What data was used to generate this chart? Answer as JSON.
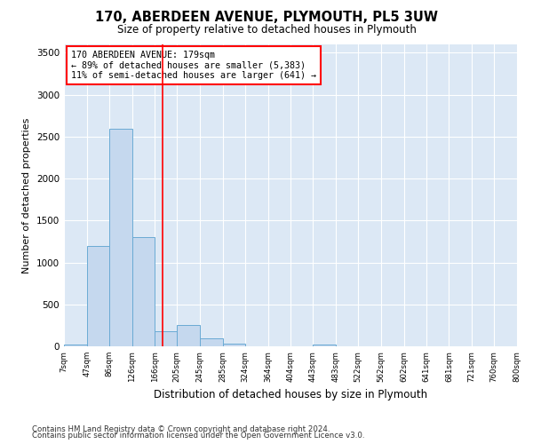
{
  "title": "170, ABERDEEN AVENUE, PLYMOUTH, PL5 3UW",
  "subtitle": "Size of property relative to detached houses in Plymouth",
  "xlabel": "Distribution of detached houses by size in Plymouth",
  "ylabel": "Number of detached properties",
  "bar_color": "#c5d8ee",
  "bar_edge_color": "#6aaad4",
  "background_color": "#dce8f5",
  "grid_color": "#ffffff",
  "property_size": 179,
  "annotation_lines": [
    "170 ABERDEEN AVENUE: 179sqm",
    "← 89% of detached houses are smaller (5,383)",
    "11% of semi-detached houses are larger (641) →"
  ],
  "bin_edges": [
    7,
    47,
    86,
    126,
    166,
    205,
    245,
    285,
    324,
    364,
    404,
    443,
    483,
    522,
    562,
    602,
    641,
    681,
    721,
    760,
    800
  ],
  "bin_labels": [
    "7sqm",
    "47sqm",
    "86sqm",
    "126sqm",
    "166sqm",
    "205sqm",
    "245sqm",
    "285sqm",
    "324sqm",
    "364sqm",
    "404sqm",
    "443sqm",
    "483sqm",
    "522sqm",
    "562sqm",
    "602sqm",
    "641sqm",
    "681sqm",
    "721sqm",
    "760sqm",
    "800sqm"
  ],
  "counts": [
    20,
    1200,
    2590,
    1300,
    180,
    250,
    100,
    30,
    5,
    0,
    0,
    20,
    0,
    0,
    0,
    0,
    0,
    0,
    0,
    0
  ],
  "ylim": [
    0,
    3600
  ],
  "yticks": [
    0,
    500,
    1000,
    1500,
    2000,
    2500,
    3000,
    3500
  ],
  "footnote_line1": "Contains HM Land Registry data © Crown copyright and database right 2024.",
  "footnote_line2": "Contains public sector information licensed under the Open Government Licence v3.0."
}
